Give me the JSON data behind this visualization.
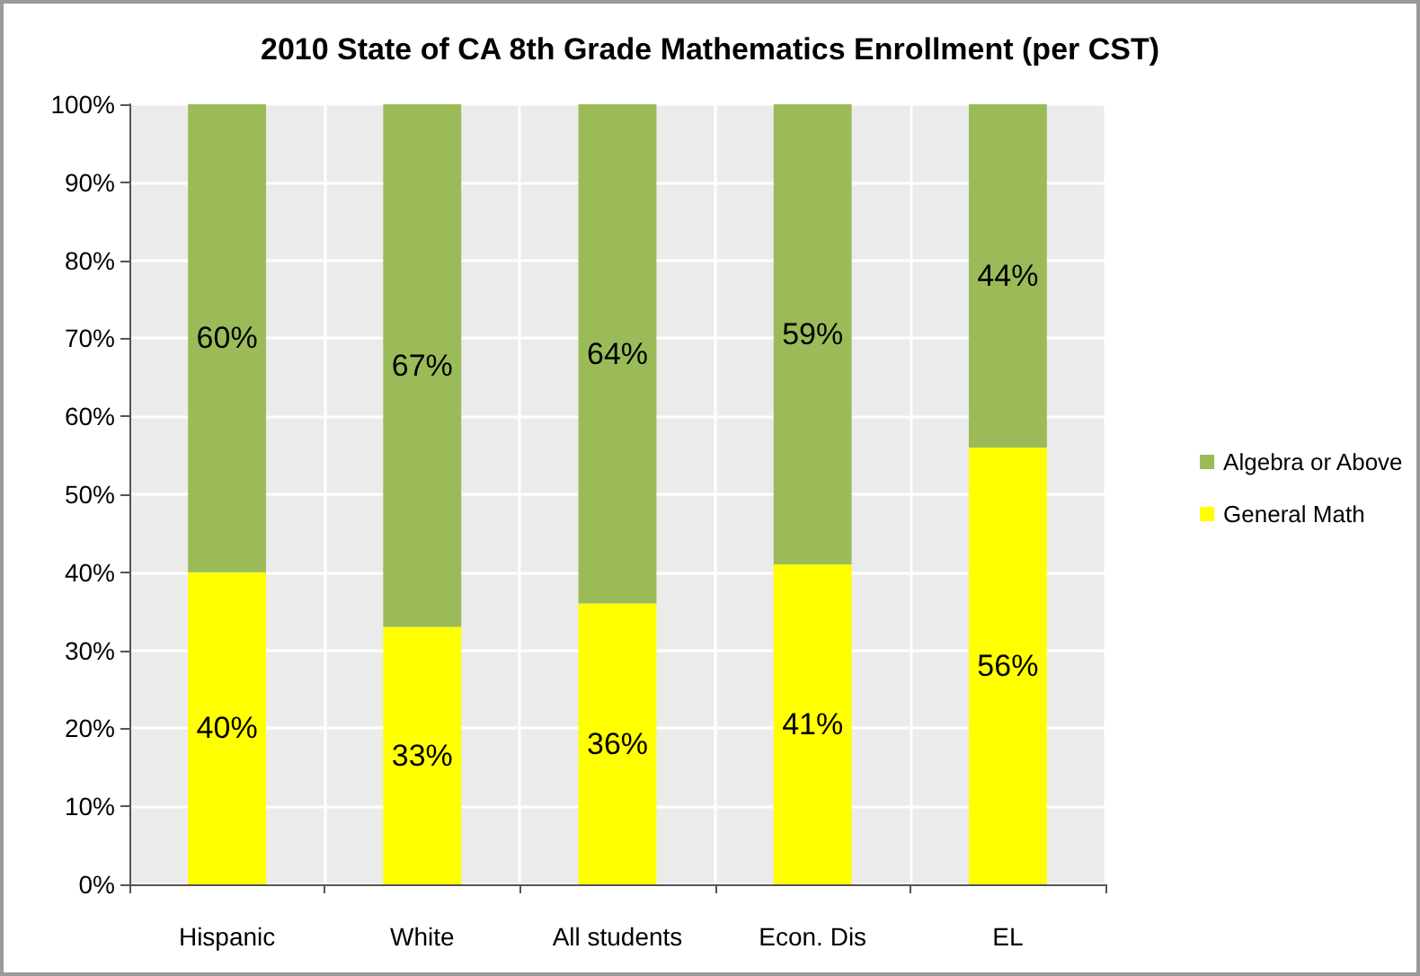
{
  "chart_data": {
    "type": "bar",
    "title": "2010 State of CA 8th Grade Mathematics Enrollment (per CST)",
    "categories": [
      "Hispanic",
      "White",
      "All students",
      "Econ. Dis",
      "EL"
    ],
    "stacked": true,
    "series": [
      {
        "name": "General Math",
        "color": "#ffff00",
        "values": [
          40,
          33,
          36,
          41,
          56
        ],
        "value_labels": [
          "40%",
          "33%",
          "36%",
          "41%",
          "56%"
        ]
      },
      {
        "name": "Algebra or Above",
        "color": "#9bbb59",
        "values": [
          60,
          67,
          64,
          59,
          44
        ],
        "value_labels": [
          "60%",
          "67%",
          "64%",
          "59%",
          "44%"
        ]
      }
    ],
    "ylim": [
      0,
      100
    ],
    "yticks": [
      {
        "value": 0,
        "label": "0%"
      },
      {
        "value": 10,
        "label": "10%"
      },
      {
        "value": 20,
        "label": "20%"
      },
      {
        "value": 30,
        "label": "30%"
      },
      {
        "value": 40,
        "label": "40%"
      },
      {
        "value": 50,
        "label": "50%"
      },
      {
        "value": 60,
        "label": "60%"
      },
      {
        "value": 70,
        "label": "70%"
      },
      {
        "value": 80,
        "label": "80%"
      },
      {
        "value": 90,
        "label": "90%"
      },
      {
        "value": 100,
        "label": "100%"
      }
    ],
    "grid": true,
    "legend": "right"
  }
}
